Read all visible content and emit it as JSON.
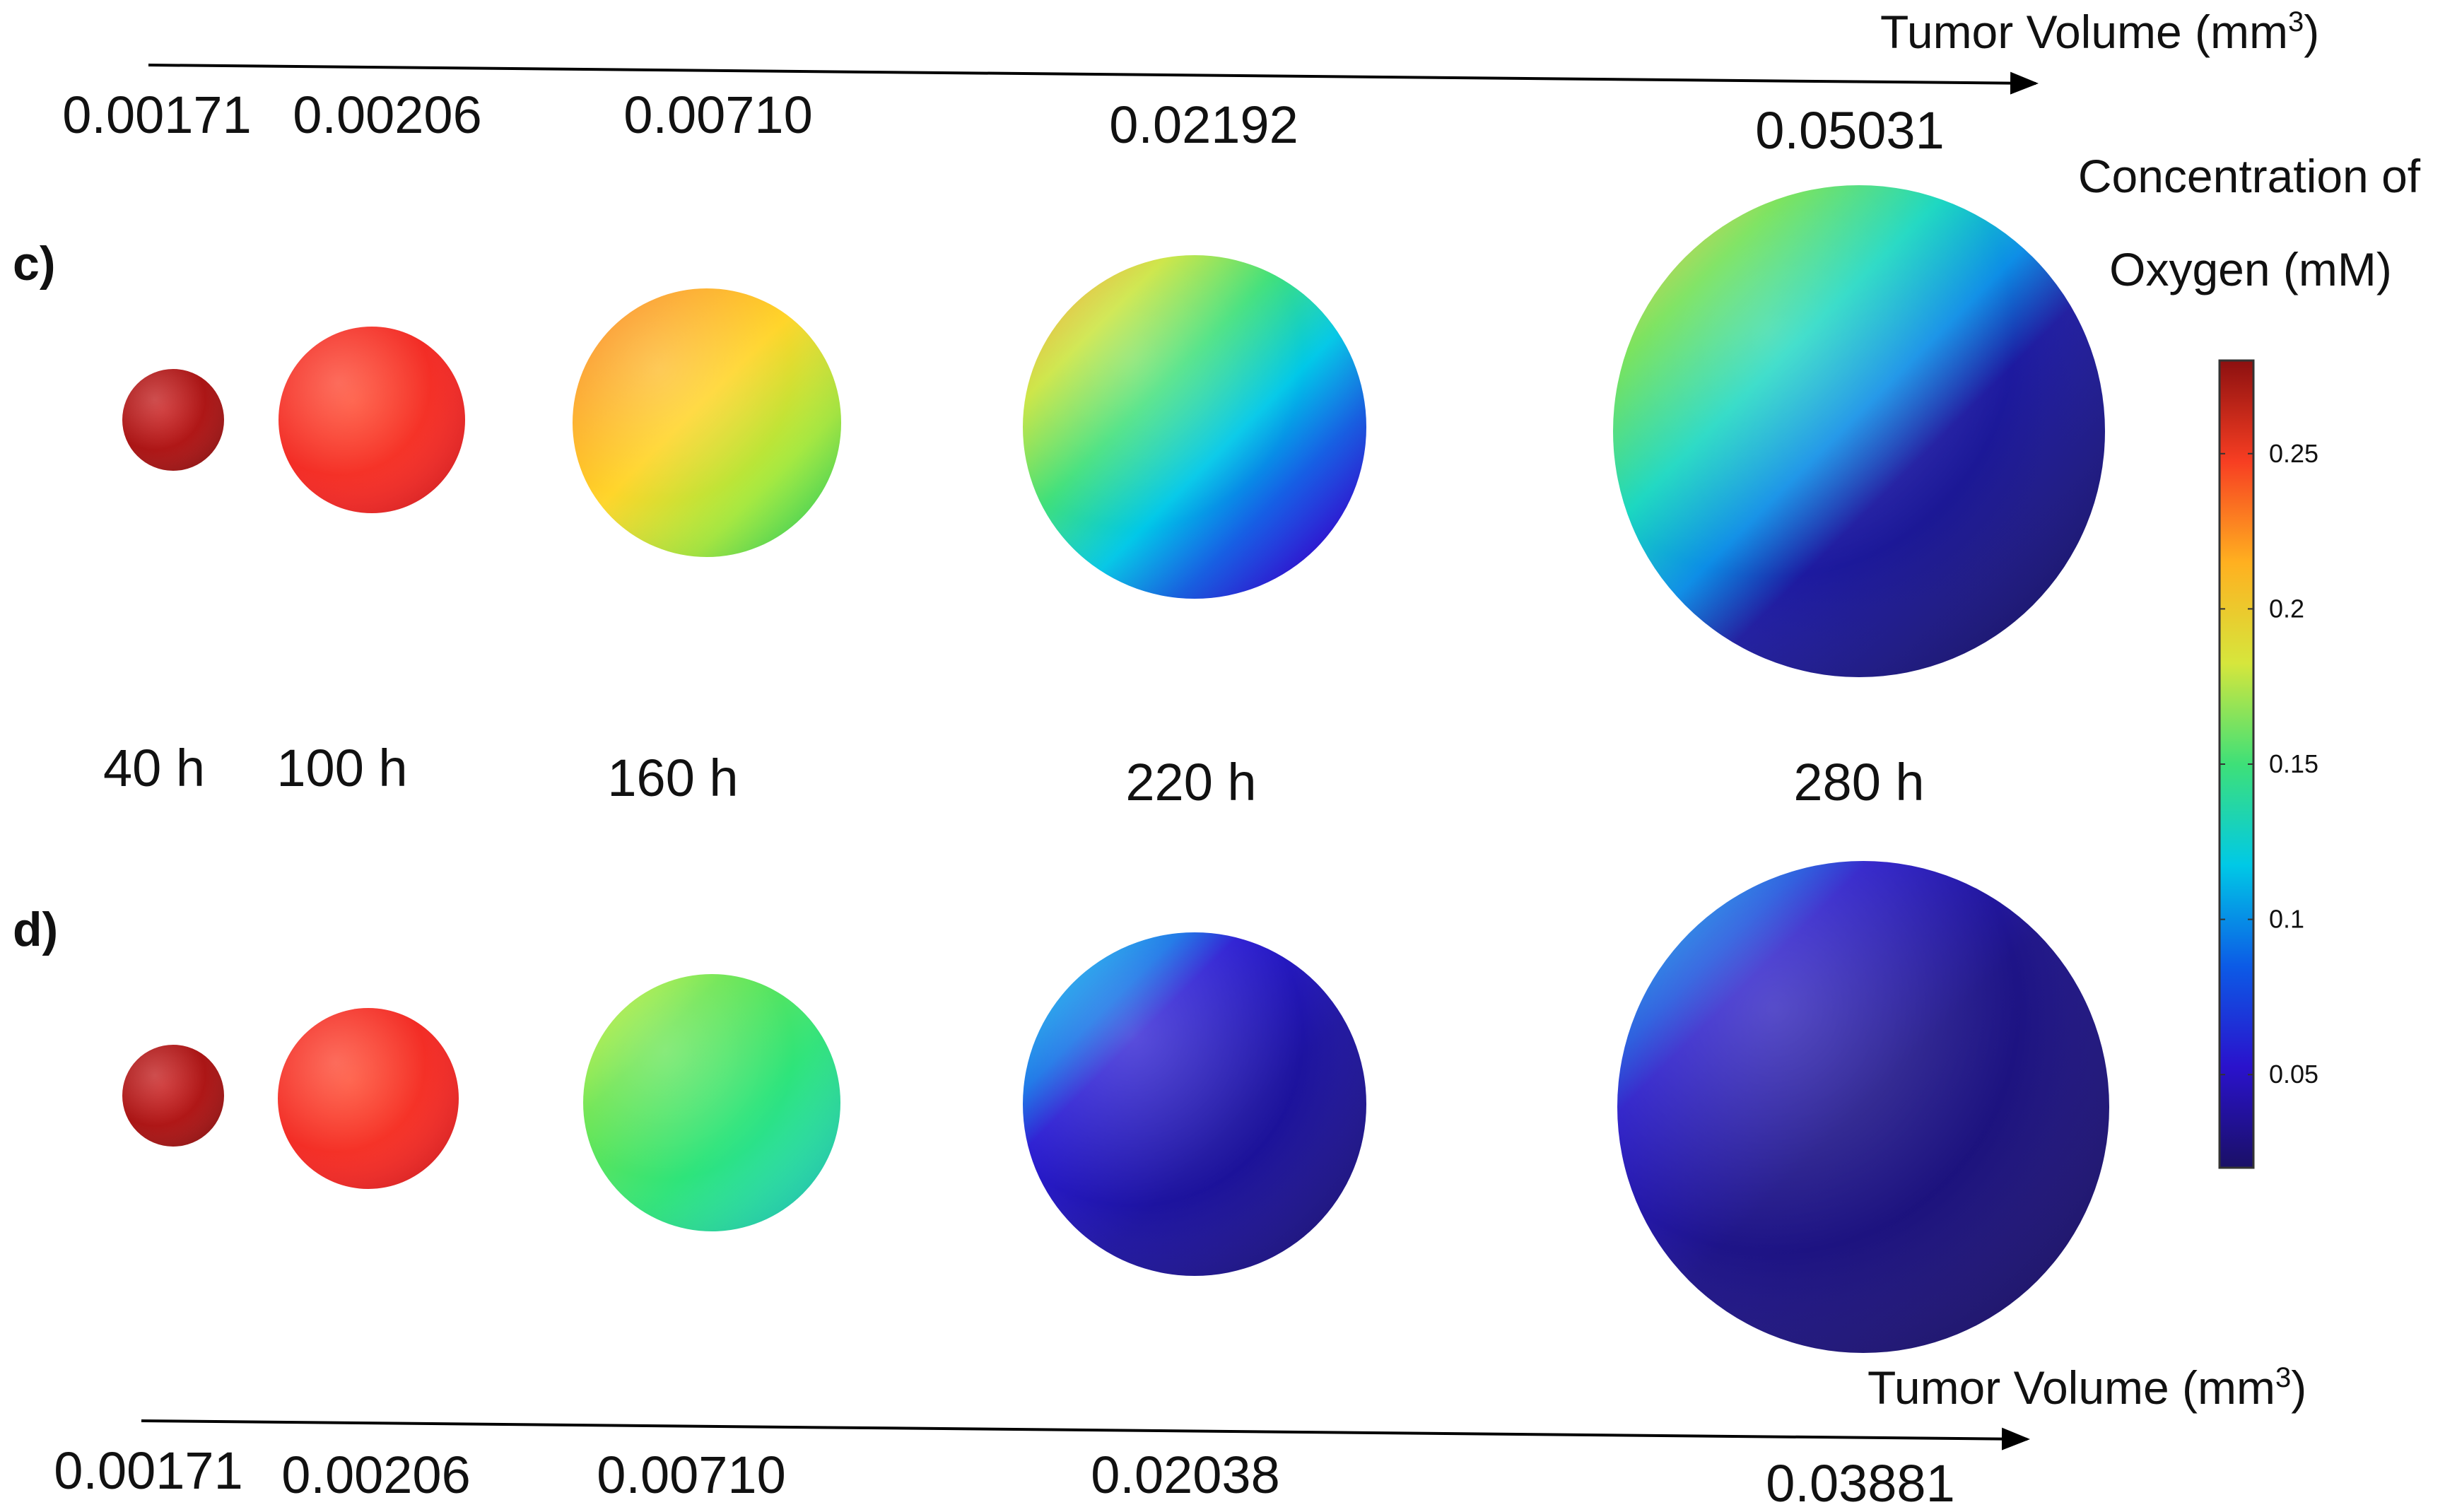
{
  "axis_title": "Tumor Volume (mm",
  "axis_title_sup": "3",
  "axis_title_close": ")",
  "panels": [
    {
      "label": "c)",
      "volumes": [
        "0.00171",
        "0.00206",
        "0.00710",
        "0.02192",
        "0.05031"
      ],
      "spheres": [
        {
          "stops": [
            [
              "0%",
              "#c81e1e"
            ],
            [
              "100%",
              "#9e1212"
            ]
          ],
          "lit": true
        },
        {
          "stops": [
            [
              "0%",
              "#ff4a30"
            ],
            [
              "100%",
              "#ee2222"
            ]
          ],
          "lit": true
        },
        {
          "stops": [
            [
              "0%",
              "#fb8a24"
            ],
            [
              "45%",
              "#ffd52a"
            ],
            [
              "75%",
              "#a5ea3c"
            ],
            [
              "100%",
              "#2ee660"
            ]
          ],
          "lit": false
        },
        {
          "stops": [
            [
              "0%",
              "#f6a430"
            ],
            [
              "18%",
              "#c9e43a"
            ],
            [
              "38%",
              "#40e07a"
            ],
            [
              "58%",
              "#00c8e8"
            ],
            [
              "75%",
              "#0f5be6"
            ],
            [
              "90%",
              "#2a12e0"
            ],
            [
              "100%",
              "#2a12c8"
            ]
          ],
          "lit": false
        },
        {
          "stops": [
            [
              "0%",
              "#f3c43a"
            ],
            [
              "15%",
              "#6ee04f"
            ],
            [
              "33%",
              "#18d7c0"
            ],
            [
              "48%",
              "#0c8de6"
            ],
            [
              "60%",
              "#1d1aa0"
            ],
            [
              "100%",
              "#16106a"
            ]
          ],
          "lit": false
        }
      ]
    },
    {
      "label": "d)",
      "volumes": [
        "0.00171",
        "0.00206",
        "0.00710",
        "0.02038",
        "0.03881"
      ],
      "spheres": [
        {
          "stops": [
            [
              "0%",
              "#c81e1e"
            ],
            [
              "100%",
              "#9e1212"
            ]
          ],
          "lit": true
        },
        {
          "stops": [
            [
              "0%",
              "#ff4a30"
            ],
            [
              "100%",
              "#ee2222"
            ]
          ],
          "lit": true
        },
        {
          "stops": [
            [
              "0%",
              "#c6ef3c"
            ],
            [
              "25%",
              "#6de551"
            ],
            [
              "60%",
              "#2ee47a"
            ],
            [
              "100%",
              "#1ed6c8"
            ]
          ],
          "lit": false
        },
        {
          "stops": [
            [
              "0%",
              "#17c6ee"
            ],
            [
              "20%",
              "#1170e6"
            ],
            [
              "30%",
              "#2a1cd2"
            ],
            [
              "60%",
              "#1d13a0"
            ],
            [
              "100%",
              "#1a1080"
            ]
          ],
          "lit": false
        },
        {
          "stops": [
            [
              "0%",
              "#18b4ee"
            ],
            [
              "16%",
              "#1b52dc"
            ],
            [
              "23%",
              "#2a1cc8"
            ],
            [
              "50%",
              "#1e1488"
            ],
            [
              "100%",
              "#1a106c"
            ]
          ],
          "lit": false
        }
      ]
    }
  ],
  "times": [
    "40 h",
    "100 h",
    "160 h",
    "220 h",
    "280 h"
  ],
  "colorbar": {
    "title_line1": "Concentration of",
    "title_line2": "Oxygen (mM)",
    "ticks": [
      "0.25",
      "0.2",
      "0.15",
      "0.1",
      "0.05"
    ],
    "tick_values": [
      0.25,
      0.2,
      0.15,
      0.1,
      0.05
    ],
    "min": 0.02,
    "max": 0.28,
    "colormap": [
      "#1a1066",
      "#2a12cc",
      "#0c5be6",
      "#00c9e6",
      "#3ee078",
      "#d6e63c",
      "#ffb020",
      "#f73e22",
      "#8c1010"
    ]
  }
}
